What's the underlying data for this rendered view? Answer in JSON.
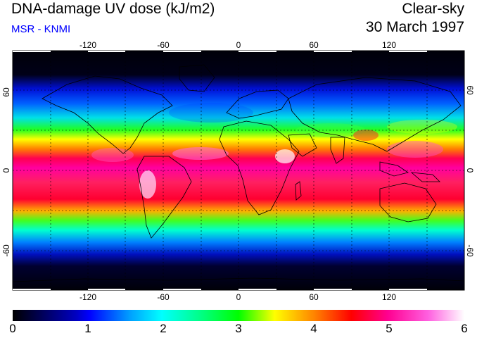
{
  "header": {
    "title": "DNA-damage UV dose (kJ/m2)",
    "subtitle": "MSR - KNMI",
    "condition": "Clear-sky",
    "date": "30 March 1997"
  },
  "map": {
    "lon_ticks": [
      "-120",
      "-60",
      "0",
      "60",
      "120"
    ],
    "lat_ticks_left": [
      "60",
      "0",
      "-60"
    ],
    "lat_ticks_right": [
      "60",
      "0",
      "-60"
    ],
    "grid": "dashed 30-degree graticule",
    "colors": {
      "ocean_land_border": "#000000"
    }
  },
  "colorbar": {
    "ticks": [
      "0",
      "1",
      "2",
      "3",
      "4",
      "5",
      "6"
    ],
    "range": [
      0,
      6
    ],
    "colors": [
      "#000000",
      "#0000ff",
      "#00ffff",
      "#00ff00",
      "#ffff00",
      "#ff0000",
      "#ff00aa",
      "#ffffff"
    ]
  }
}
